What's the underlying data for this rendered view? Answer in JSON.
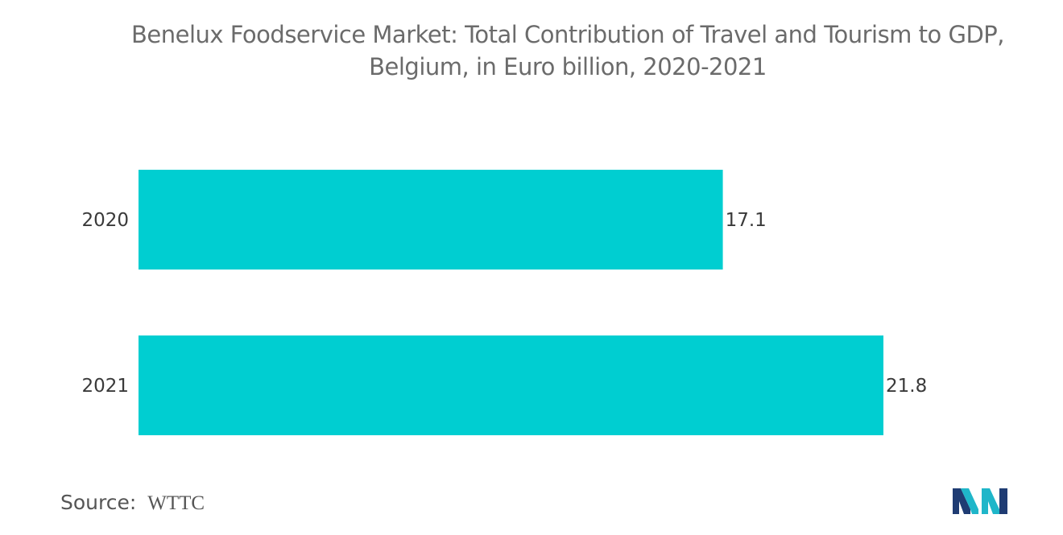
{
  "title": {
    "line1": "Benelux Foodservice Market: Total Contribution of Travel and Tourism to GDP,",
    "line2": "Belgium, in Euro billion, 2020-2021"
  },
  "source": {
    "label": "Source:",
    "value": "WTTC"
  },
  "colors": {
    "bar": "#00CED1",
    "logo_primary": "#1f3c73",
    "logo_accent": "#1fb6c9"
  },
  "logo": {
    "icon": "mordor-intelligence-logo-icon"
  },
  "chart_data": {
    "type": "bar",
    "orientation": "horizontal",
    "title": "Benelux Foodservice Market: Total Contribution of Travel and Tourism to GDP, Belgium, in Euro billion, 2020-2021",
    "categories": [
      "2020",
      "2021"
    ],
    "values": [
      17.1,
      21.8
    ],
    "value_labels": [
      "17.1",
      "21.8"
    ],
    "xlim": [
      0,
      21.8
    ],
    "grid": false,
    "legend": "none"
  }
}
